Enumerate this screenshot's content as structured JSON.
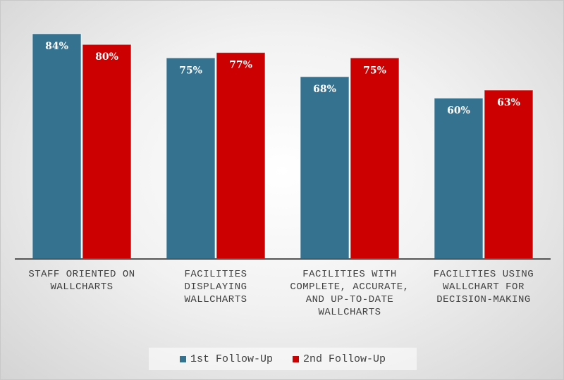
{
  "chart_data": {
    "type": "bar",
    "categories": [
      "STAFF ORIENTED ON WALLCHARTS",
      "FACILITIES DISPLAYING WALLCHARTS",
      "FACILITIES WITH COMPLETE, ACCURATE, AND UP-TO-DATE WALLCHARTS",
      "FACILITIES USING WALLCHART FOR DECISION-MAKING"
    ],
    "series": [
      {
        "name": "1st Follow-Up",
        "color": "#35728f",
        "values": [
          84,
          75,
          68,
          60
        ],
        "value_labels": [
          "84%",
          "75%",
          "68%",
          "60%"
        ]
      },
      {
        "name": "2nd Follow-Up",
        "color": "#cc0000",
        "values": [
          80,
          77,
          75,
          63
        ],
        "value_labels": [
          "80%",
          "77%",
          "75%",
          "63%"
        ]
      }
    ]
  }
}
